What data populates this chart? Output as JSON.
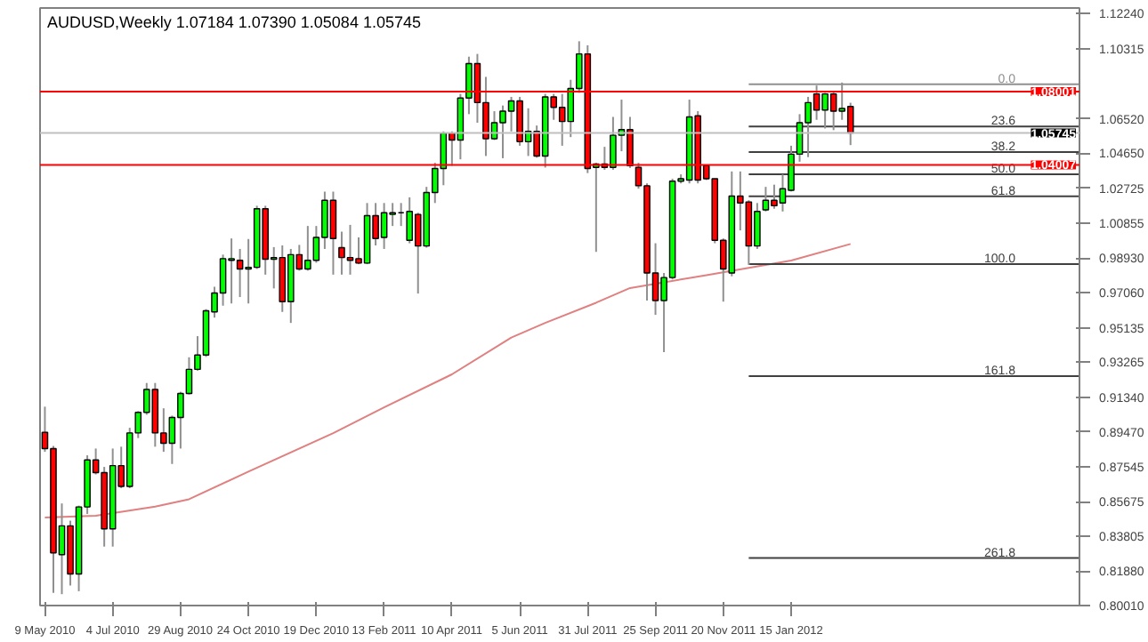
{
  "chart_data": {
    "type": "candlestick",
    "title": "AUDUSD,Weekly  1.07184 1.07390 1.05084 1.05745",
    "x": [
      "2010-05-09",
      "2010-05-16",
      "2010-05-23",
      "2010-05-30",
      "2010-06-06",
      "2010-06-13",
      "2010-06-20",
      "2010-06-27",
      "2010-07-04",
      "2010-07-11",
      "2010-07-18",
      "2010-07-25",
      "2010-08-01",
      "2010-08-08",
      "2010-08-15",
      "2010-08-22",
      "2010-08-29",
      "2010-09-05",
      "2010-09-12",
      "2010-09-19",
      "2010-09-26",
      "2010-10-03",
      "2010-10-10",
      "2010-10-17",
      "2010-10-24",
      "2010-10-31",
      "2010-11-07",
      "2010-11-14",
      "2010-11-21",
      "2010-11-28",
      "2010-12-05",
      "2010-12-12",
      "2010-12-19",
      "2010-12-26",
      "2011-01-02",
      "2011-01-09",
      "2011-01-16",
      "2011-01-23",
      "2011-01-30",
      "2011-02-06",
      "2011-02-13",
      "2011-02-20",
      "2011-02-27",
      "2011-03-06",
      "2011-03-13",
      "2011-03-20",
      "2011-03-27",
      "2011-04-03",
      "2011-04-10",
      "2011-04-17",
      "2011-04-24",
      "2011-05-01",
      "2011-05-08",
      "2011-05-15",
      "2011-05-22",
      "2011-05-29",
      "2011-06-05",
      "2011-06-12",
      "2011-06-19",
      "2011-06-26",
      "2011-07-03",
      "2011-07-10",
      "2011-07-17",
      "2011-07-24",
      "2011-07-31",
      "2011-08-07",
      "2011-08-14",
      "2011-08-21",
      "2011-08-28",
      "2011-09-04",
      "2011-09-11",
      "2011-09-18",
      "2011-09-25",
      "2011-10-02",
      "2011-10-09",
      "2011-10-16",
      "2011-10-23",
      "2011-10-30",
      "2011-11-06",
      "2011-11-13",
      "2011-11-20",
      "2011-11-27",
      "2011-12-04",
      "2011-12-11",
      "2011-12-18",
      "2011-12-25",
      "2012-01-01",
      "2012-01-08",
      "2012-01-15",
      "2012-01-22",
      "2012-01-29",
      "2012-02-05",
      "2012-02-12",
      "2012-02-19",
      "2012-02-26",
      "2012-03-04"
    ],
    "ohlc": [
      [
        0.8944,
        0.9084,
        0.8838,
        0.8856
      ],
      [
        0.8856,
        0.887,
        0.807,
        0.8288
      ],
      [
        0.8278,
        0.8557,
        0.8063,
        0.8435
      ],
      [
        0.8435,
        0.8463,
        0.811,
        0.8173
      ],
      [
        0.8173,
        0.8545,
        0.8079,
        0.8538
      ],
      [
        0.8538,
        0.8819,
        0.85,
        0.8794
      ],
      [
        0.8794,
        0.8856,
        0.8715,
        0.8725
      ],
      [
        0.8725,
        0.8756,
        0.8322,
        0.8419
      ],
      [
        0.8419,
        0.8856,
        0.8322,
        0.8763
      ],
      [
        0.8763,
        0.8866,
        0.864,
        0.865
      ],
      [
        0.865,
        0.8969,
        0.864,
        0.8941
      ],
      [
        0.8941,
        0.906,
        0.8913,
        0.9053
      ],
      [
        0.9053,
        0.9213,
        0.904,
        0.9178
      ],
      [
        0.9178,
        0.9213,
        0.8866,
        0.8941
      ],
      [
        0.8941,
        0.9075,
        0.8838,
        0.8885
      ],
      [
        0.8885,
        0.9035,
        0.8772,
        0.9025
      ],
      [
        0.9025,
        0.9165,
        0.8856,
        0.9156
      ],
      [
        0.9156,
        0.9353,
        0.915,
        0.9287
      ],
      [
        0.9287,
        0.9468,
        0.928,
        0.9365
      ],
      [
        0.9365,
        0.9615,
        0.9355,
        0.9606
      ],
      [
        0.96,
        0.9737,
        0.9569,
        0.9703
      ],
      [
        0.9703,
        0.9912,
        0.9634,
        0.989
      ],
      [
        0.9881,
        1.0,
        0.9646,
        0.989
      ],
      [
        0.9881,
        0.9943,
        0.9681,
        0.9834
      ],
      [
        0.9834,
        0.9997,
        0.9646,
        0.9843
      ],
      [
        0.9843,
        1.0178,
        0.9834,
        1.0162
      ],
      [
        1.0162,
        1.0178,
        0.9803,
        0.9887
      ],
      [
        0.9887,
        0.9953,
        0.9728,
        0.9896
      ],
      [
        0.9896,
        0.9962,
        0.96,
        0.9656
      ],
      [
        0.9656,
        0.9943,
        0.954,
        0.9912
      ],
      [
        0.9912,
        0.9965,
        0.9825,
        0.9834
      ],
      [
        0.9834,
        1.0068,
        0.9825,
        0.9881
      ],
      [
        0.9881,
        1.0068,
        0.9868,
        1.0006
      ],
      [
        1.0006,
        1.0255,
        0.9943,
        1.0208
      ],
      [
        1.0208,
        1.0255,
        0.9803,
        1.0
      ],
      [
        0.995,
        1.0037,
        0.9803,
        0.9896
      ],
      [
        0.9896,
        1.0074,
        0.9803,
        0.9881
      ],
      [
        0.989,
        1.0006,
        0.986,
        0.9866
      ],
      [
        0.9866,
        1.0193,
        0.986,
        1.0124
      ],
      [
        1.0124,
        1.0193,
        0.9962,
        1.0
      ],
      [
        1.0006,
        1.0193,
        0.9943,
        1.014
      ],
      [
        1.0131,
        1.0193,
        1.0068,
        1.014
      ],
      [
        1.014,
        1.0193,
        1.0068,
        1.014
      ],
      [
        0.999,
        1.0224,
        0.9974,
        1.0147
      ],
      [
        1.0131,
        1.014,
        0.97,
        0.9959
      ],
      [
        0.9959,
        1.0281,
        0.995,
        1.025
      ],
      [
        1.025,
        1.0412,
        1.0193,
        1.0381
      ],
      [
        1.0381,
        1.0583,
        1.029,
        1.0574
      ],
      [
        1.0574,
        1.0583,
        1.0396,
        1.0536
      ],
      [
        1.0536,
        1.0787,
        1.0431,
        1.0765
      ],
      [
        1.0765,
        1.099,
        1.0677,
        1.0952
      ],
      [
        1.0952,
        1.1005,
        1.063,
        1.074
      ],
      [
        1.074,
        1.088,
        1.0449,
        1.0543
      ],
      [
        1.0543,
        1.0693,
        1.0536,
        1.063
      ],
      [
        1.063,
        1.0724,
        1.0437,
        1.0693
      ],
      [
        1.0693,
        1.0771,
        1.0583,
        1.0749
      ],
      [
        1.0749,
        1.0771,
        1.0505,
        1.0527
      ],
      [
        1.0527,
        1.0709,
        1.0449,
        1.0583
      ],
      [
        1.0583,
        1.0615,
        1.044,
        1.0449
      ],
      [
        1.0449,
        1.0787,
        1.0386,
        1.0771
      ],
      [
        1.0771,
        1.0787,
        1.0646,
        1.0714
      ],
      [
        1.0714,
        1.0787,
        1.0505,
        1.0637
      ],
      [
        1.0637,
        1.0864,
        1.0552,
        1.0817
      ],
      [
        1.0817,
        1.1074,
        1.0793,
        1.1005
      ],
      [
        1.1005,
        1.1052,
        1.0356,
        1.0381
      ],
      [
        1.0387,
        1.0412,
        0.9927,
        1.0405
      ],
      [
        1.0405,
        1.0499,
        1.0374,
        1.0387
      ],
      [
        1.0387,
        1.0662,
        1.0374,
        1.0562
      ],
      [
        1.0562,
        1.0756,
        1.0475,
        1.0593
      ],
      [
        1.0593,
        1.0662,
        1.0384,
        1.0396
      ],
      [
        1.0387,
        1.0412,
        1.0271,
        1.0287
      ],
      [
        1.0287,
        1.03,
        0.9662,
        0.9812
      ],
      [
        0.9812,
        0.9974,
        0.9584,
        0.9662
      ],
      [
        0.9662,
        0.9812,
        0.9381,
        0.9787
      ],
      [
        0.9787,
        1.0325,
        0.9777,
        1.0312
      ],
      [
        1.0312,
        1.0349,
        1.03,
        1.0325
      ],
      [
        1.0318,
        1.0756,
        1.03,
        1.0662
      ],
      [
        1.0668,
        1.0693,
        1.03,
        1.0318
      ],
      [
        1.0396,
        1.0403,
        1.0318,
        1.0325
      ],
      [
        1.0325,
        1.0325,
        0.9974,
        0.999
      ],
      [
        0.999,
        1.0,
        0.9656,
        0.9834
      ],
      [
        0.9812,
        1.0365,
        0.9794,
        1.0231
      ],
      [
        1.0231,
        1.0365,
        1.0044,
        1.0193
      ],
      [
        1.0199,
        1.0208,
        0.9856,
        0.9959
      ],
      [
        0.9959,
        1.0193,
        0.9943,
        1.0147
      ],
      [
        1.0156,
        1.0281,
        1.0147,
        1.0208
      ],
      [
        1.0208,
        1.0293,
        1.0162,
        1.0178
      ],
      [
        1.0193,
        1.0349,
        1.0147,
        1.0271
      ],
      [
        1.0262,
        1.0505,
        1.0256,
        1.0459
      ],
      [
        1.0459,
        1.0677,
        1.0418,
        1.063
      ],
      [
        1.063,
        1.0771,
        1.0443,
        1.074
      ],
      [
        1.0787,
        1.0833,
        1.0646,
        1.0699
      ],
      [
        1.0699,
        1.0793,
        1.0599,
        1.0787
      ],
      [
        1.0787,
        1.0802,
        1.059,
        1.0693
      ],
      [
        1.0693,
        1.0849,
        1.0646,
        1.0708
      ],
      [
        1.07184,
        1.0739,
        1.05084,
        1.05745
      ]
    ],
    "series": [
      {
        "type": "line",
        "color": "#e08080",
        "x": [
          "2010-05-09",
          "2010-06-20",
          "2010-08-08",
          "2010-09-05",
          "2010-10-24",
          "2011-01-02",
          "2011-02-13",
          "2011-04-10",
          "2011-05-29",
          "2011-06-26",
          "2011-08-07",
          "2011-09-04",
          "2011-11-06",
          "2012-01-15",
          "2012-03-04"
        ],
        "values": [
          0.848,
          0.849,
          0.854,
          0.858,
          0.873,
          0.894,
          0.908,
          0.926,
          0.946,
          0.954,
          0.965,
          0.973,
          0.98,
          0.988,
          0.997
        ]
      },
      {
        "type": "line",
        "name": "0.0",
        "color": "#909090",
        "x": [
          "2011-12-11",
          "2012-09-09"
        ],
        "values": [
          1.084,
          1.084
        ]
      },
      {
        "type": "line",
        "name": "23.6",
        "color": "#404040",
        "x": [
          "2011-12-11",
          "2012-09-09"
        ],
        "values": [
          1.061,
          1.061
        ]
      },
      {
        "type": "line",
        "name": "38.2",
        "color": "#404040",
        "x": [
          "2011-12-11",
          "2012-09-09"
        ],
        "values": [
          1.047,
          1.047
        ]
      },
      {
        "type": "line",
        "name": "50.0",
        "color": "#404040",
        "x": [
          "2011-12-11",
          "2012-09-09"
        ],
        "values": [
          1.035,
          1.035
        ]
      },
      {
        "type": "line",
        "name": "61.8",
        "color": "#404040",
        "x": [
          "2011-12-11",
          "2012-09-09"
        ],
        "values": [
          1.023,
          1.023
        ]
      },
      {
        "type": "line",
        "name": "100.0",
        "color": "#404040",
        "x": [
          "2011-12-11",
          "2012-09-09"
        ],
        "values": [
          0.986,
          0.986
        ]
      },
      {
        "type": "line",
        "name": "161.8",
        "color": "#404040",
        "x": [
          "2011-12-11",
          "2012-09-09"
        ],
        "values": [
          0.925,
          0.925
        ]
      },
      {
        "type": "line",
        "name": "261.8",
        "color": "#404040",
        "x": [
          "2011-12-11",
          "2012-09-09"
        ],
        "values": [
          0.826,
          0.826
        ]
      }
    ],
    "ref_lines": [
      {
        "axis": "y",
        "value": 1.08001,
        "label": "1.08001",
        "color": "#ff0000"
      },
      {
        "axis": "y",
        "value": 1.04007,
        "label": "1.04007",
        "color": "#ff0000"
      },
      {
        "axis": "y",
        "value": 1.05745,
        "label": "1.05745",
        "color": "#c0c0c0"
      }
    ],
    "xlim": [
      "2010-05-05",
      "2012-09-09"
    ],
    "xticks": [
      {
        "value": "2010-05-09",
        "label": "9 May 2010"
      },
      {
        "value": "2010-07-04",
        "label": "4 Jul 2010"
      },
      {
        "value": "2010-08-29",
        "label": "29 Aug 2010"
      },
      {
        "value": "2010-10-24",
        "label": "24 Oct 2010"
      },
      {
        "value": "2010-12-19",
        "label": "19 Dec 2010"
      },
      {
        "value": "2011-02-13",
        "label": "13 Feb 2011"
      },
      {
        "value": "2011-04-10",
        "label": "10 Apr 2011"
      },
      {
        "value": "2011-06-05",
        "label": "5 Jun 2011"
      },
      {
        "value": "2011-07-31",
        "label": "31 Jul 2011"
      },
      {
        "value": "2011-09-25",
        "label": "25 Sep 2011"
      },
      {
        "value": "2011-11-20",
        "label": "20 Nov 2011"
      },
      {
        "value": "2012-01-15",
        "label": "15 Jan 2012"
      }
    ],
    "ylim": [
      0.8001,
      1.1255
    ],
    "yticks": [
      {
        "value": 1.1224,
        "label": "1.12240"
      },
      {
        "value": 1.10315,
        "label": "1.10315"
      },
      {
        "value": 1.0652,
        "label": "1.06520"
      },
      {
        "value": 1.0465,
        "label": "1.04650"
      },
      {
        "value": 1.02725,
        "label": "1.02725"
      },
      {
        "value": 1.00855,
        "label": "1.00855"
      },
      {
        "value": 0.9893,
        "label": "0.98930"
      },
      {
        "value": 0.9706,
        "label": "0.97060"
      },
      {
        "value": 0.95135,
        "label": "0.95135"
      },
      {
        "value": 0.93265,
        "label": "0.93265"
      },
      {
        "value": 0.9134,
        "label": "0.91340"
      },
      {
        "value": 0.8947,
        "label": "0.89470"
      },
      {
        "value": 0.87545,
        "label": "0.87545"
      },
      {
        "value": 0.85675,
        "label": "0.85675"
      },
      {
        "value": 0.83805,
        "label": "0.83805"
      },
      {
        "value": 0.8188,
        "label": "0.81880"
      },
      {
        "value": 0.8001,
        "label": "0.80010"
      }
    ]
  }
}
